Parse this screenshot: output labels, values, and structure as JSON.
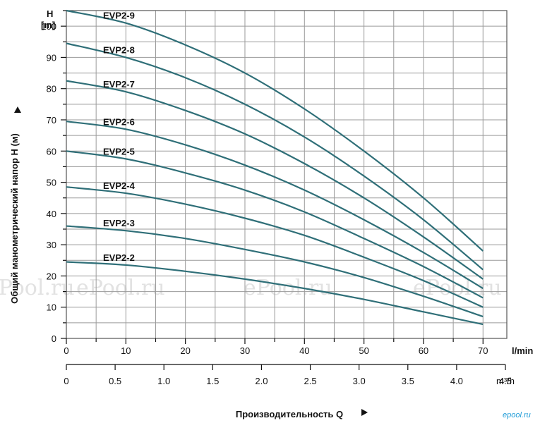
{
  "chart_data": {
    "type": "line",
    "title": "",
    "xlabel": "Производительность Q",
    "ylabel": "Общий манометрический напор H (м)",
    "y_unit_symbol": "H",
    "y_unit": "[m]",
    "x_unit_top": "l/min",
    "x_unit_bottom": "m³/h",
    "xlim": [
      0,
      70
    ],
    "ylim": [
      0,
      105
    ],
    "x_ticks": [
      0,
      10,
      20,
      30,
      40,
      50,
      60,
      70
    ],
    "y_ticks": [
      0,
      10,
      20,
      30,
      40,
      50,
      60,
      70,
      80,
      90,
      100
    ],
    "x2_ticks": [
      "0",
      "0.5",
      "1.0",
      "1.5",
      "2.0",
      "2.5",
      "3.0",
      "3.5",
      "4.0",
      "4.5"
    ],
    "grid": true,
    "legend": "none",
    "series": [
      {
        "name": "EVP2-9",
        "x": [
          0,
          10,
          20,
          30,
          40,
          50,
          60,
          70
        ],
        "y": [
          105,
          101,
          94,
          85,
          73.5,
          60,
          45,
          28
        ]
      },
      {
        "name": "EVP2-8",
        "x": [
          0,
          10,
          20,
          30,
          40,
          50,
          60,
          70
        ],
        "y": [
          94.5,
          90,
          83.5,
          75,
          64.5,
          52,
          38,
          22
        ]
      },
      {
        "name": "EVP2-7",
        "x": [
          0,
          10,
          20,
          30,
          40,
          50,
          60,
          70
        ],
        "y": [
          82.5,
          79,
          73,
          65.5,
          56,
          45,
          32.5,
          19
        ]
      },
      {
        "name": "EVP2-6",
        "x": [
          0,
          10,
          20,
          30,
          40,
          50,
          60,
          70
        ],
        "y": [
          69.5,
          67,
          62,
          55.5,
          47.5,
          38,
          27.5,
          16
        ]
      },
      {
        "name": "EVP2-5",
        "x": [
          0,
          10,
          20,
          30,
          40,
          50,
          60,
          70
        ],
        "y": [
          60,
          57.5,
          53,
          47.5,
          40.5,
          32,
          23,
          13
        ]
      },
      {
        "name": "EVP2-4",
        "x": [
          0,
          10,
          20,
          30,
          40,
          50,
          60,
          70
        ],
        "y": [
          48.5,
          46.5,
          43,
          38.5,
          33,
          26,
          18.5,
          10
        ]
      },
      {
        "name": "EVP2-3",
        "x": [
          0,
          10,
          20,
          30,
          40,
          50,
          60,
          70
        ],
        "y": [
          36,
          34.5,
          32,
          28.5,
          24.5,
          19.5,
          13.5,
          7
        ]
      },
      {
        "name": "EVP2-2",
        "x": [
          0,
          10,
          20,
          30,
          40,
          50,
          60,
          70
        ],
        "y": [
          24.5,
          23.5,
          21.5,
          19,
          16,
          12.5,
          8.5,
          4.5
        ]
      }
    ],
    "series_color": "#2f6f78",
    "grid_color": "#9a9a9a"
  },
  "watermarks": [
    "ePool.ru",
    "ePool.ru",
    "ePool.ru",
    "ePool.ru"
  ],
  "logo": "epool.ru"
}
